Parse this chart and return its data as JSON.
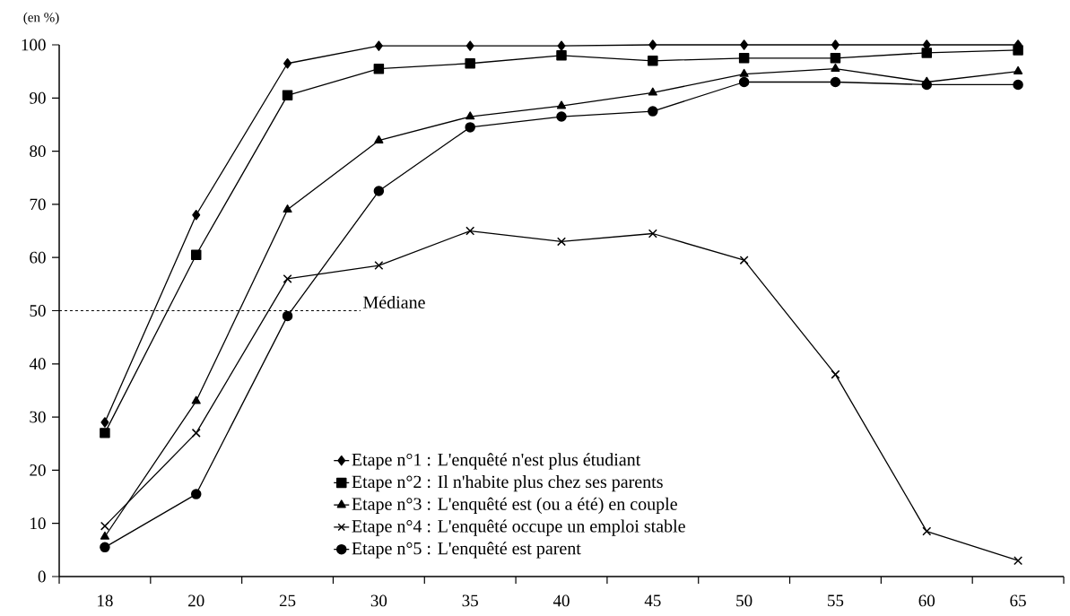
{
  "chart_data": {
    "type": "line",
    "ylabel": "(en %)",
    "categories": [
      "18",
      "20",
      "25",
      "30",
      "35",
      "40",
      "45",
      "50",
      "55",
      "60",
      "65"
    ],
    "ylim": [
      0,
      100
    ],
    "yticks": [
      0,
      10,
      20,
      30,
      40,
      50,
      60,
      70,
      80,
      90,
      100
    ],
    "legend": "bottom",
    "line_style": "solid",
    "ref_lines": [
      {
        "axis": "y",
        "value": 50,
        "label": "Médiane",
        "line_style": "dashed"
      }
    ],
    "series": [
      {
        "name": "Etape n°1 : L'enquêté n'est plus étudiant",
        "color": "#000000",
        "marker": "diamond",
        "values": [
          29,
          68,
          96.5,
          99.8,
          99.8,
          99.8,
          100,
          100,
          100,
          100,
          100
        ]
      },
      {
        "name": "Etape n°2 : Il n'habite plus chez ses parents",
        "color": "#000000",
        "marker": "square",
        "values": [
          27,
          60.5,
          90.5,
          95.5,
          96.5,
          98,
          97,
          97.5,
          97.5,
          98.5,
          99
        ]
      },
      {
        "name": "Etape n°3 : L'enquêté est (ou a été) en couple",
        "color": "#000000",
        "marker": "triangle",
        "values": [
          7.5,
          33,
          69,
          82,
          86.5,
          88.5,
          91,
          94.5,
          95.5,
          93,
          95
        ]
      },
      {
        "name": "Etape n°4 : L'enquêté occupe un emploi stable",
        "color": "#000000",
        "marker": "cross",
        "values": [
          9.5,
          27,
          56,
          58.5,
          65,
          63,
          64.5,
          59.5,
          38,
          8.5,
          3
        ]
      },
      {
        "name": "Etape n°5 : L'enquêté est parent",
        "color": "#000000",
        "marker": "circle",
        "values": [
          5.5,
          15.5,
          49,
          72.5,
          84.5,
          86.5,
          87.5,
          93,
          93,
          92.5,
          92.5
        ]
      }
    ]
  }
}
